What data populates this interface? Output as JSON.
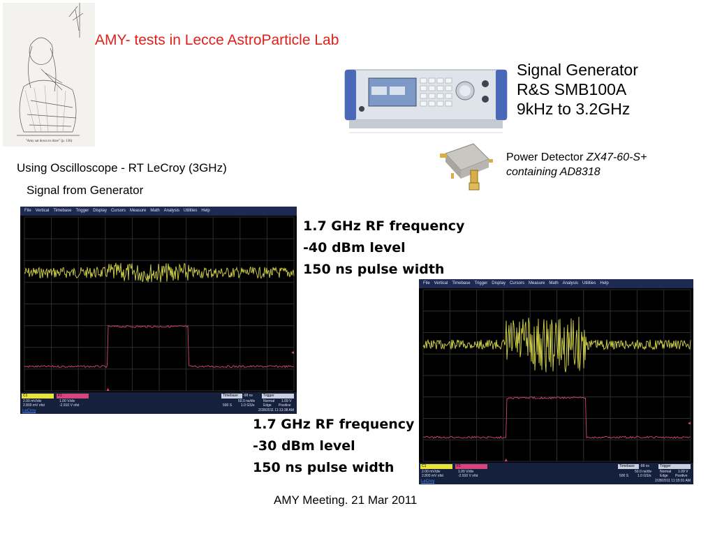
{
  "title": "AMY- tests in Lecce AstroParticle Lab",
  "illustration": {
    "caption": "\"Amy sat down to draw\" (p. 136)"
  },
  "signal_generator": {
    "lines": [
      "Signal Generator",
      "R&S SMB100A",
      "9kHz to 3.2GHz"
    ]
  },
  "power_detector": {
    "prefix": "Power Detector ",
    "model": "ZX47-60-S+",
    "chip": "containing AD8318"
  },
  "oscilloscope_heading": "Using Oscilloscope - RT LeCroy (3GHz)",
  "signal_heading": "Signal from Generator",
  "spec1": {
    "lines": [
      "1.7 GHz RF frequency",
      "-40 dBm level",
      "150 ns pulse width"
    ]
  },
  "spec2": {
    "lines": [
      "1.7 GHz RF frequency",
      "-30 dBm level",
      "150 ns pulse width"
    ]
  },
  "footer": "AMY Meeting. 21 Mar 2011",
  "scope_menu": [
    "File",
    "Vertical",
    "Timebase",
    "Trigger",
    "Display",
    "Cursors",
    "Measure",
    "Math",
    "Analysis",
    "Utilities",
    "Help"
  ],
  "scope1": {
    "c1": {
      "label": "C1",
      "vdiv": "2.00 mV/div",
      "offset": "2.800 mV ofst"
    },
    "f1": {
      "label": "F1",
      "vdiv": "1.00 V/div",
      "offset": "-2.910 V ofst"
    },
    "timebase": {
      "label": "Timebase",
      "value": "-98 ns",
      "scale": "50.0 ns/div",
      "samples": "500 S",
      "rate": "1.0 GS/s"
    },
    "trigger": {
      "label": "Trigger",
      "mode": "Normal",
      "level": "1.09 V",
      "type": "Edge",
      "slope": "Positive"
    },
    "timestamp": "2/28/2011 11:13:38 AM",
    "brand": "LeCroy"
  },
  "scope2": {
    "c1": {
      "label": "C1",
      "vdiv": "2.00 mV/div",
      "offset": "2.800 mV ofst"
    },
    "f1": {
      "label": "F1",
      "vdiv": "1.00 V/div",
      "offset": "-2.910 V ofst"
    },
    "timebase": {
      "label": "Timebase",
      "value": "-98 ns",
      "scale": "50.0 ns/div",
      "samples": "500 S",
      "rate": "1.0 GS/s"
    },
    "trigger": {
      "label": "Trigger",
      "mode": "Normal",
      "level": "1.09 V",
      "type": "Edge",
      "slope": "Positive"
    },
    "timestamp": "2/28/2011 11:15:01 AM",
    "brand": "LeCroy"
  },
  "colors": {
    "title": "#e0201b",
    "trace_c1": "#d8d84a",
    "trace_f1": "#d9457a",
    "scope_bg": "#000000"
  }
}
